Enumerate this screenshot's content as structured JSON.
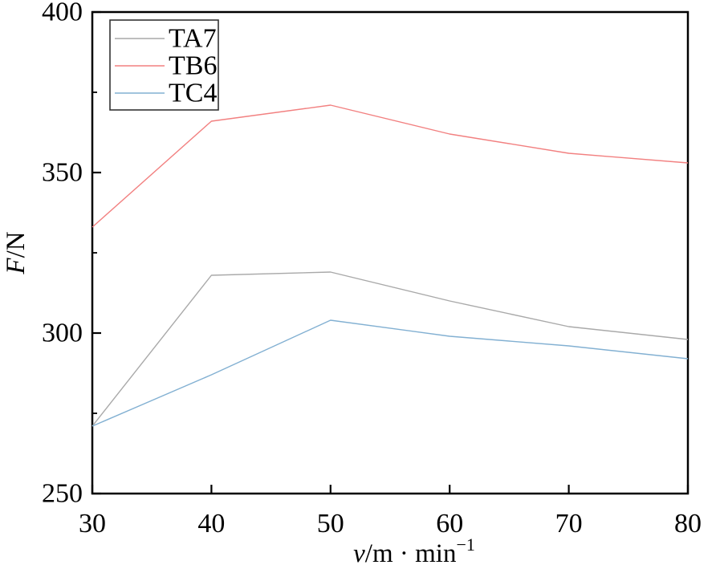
{
  "chart_data": {
    "type": "line",
    "title": "",
    "xlabel": "v/m·min⁻¹",
    "xlabel_parts": {
      "italic": "v",
      "rest": "/m · min",
      "sup": "−1"
    },
    "ylabel": "F/N",
    "ylabel_parts": {
      "italic": "F",
      "rest": "/N"
    },
    "x": [
      30,
      40,
      50,
      60,
      70,
      80
    ],
    "series": [
      {
        "name": "TA7",
        "color": "#A9A9A9",
        "values": [
          271,
          318,
          319,
          310,
          302,
          298
        ]
      },
      {
        "name": "TB6",
        "color": "#F28080",
        "values": [
          333,
          366,
          371,
          362,
          356,
          353
        ]
      },
      {
        "name": "TC4",
        "color": "#82B0D2",
        "values": [
          271,
          287,
          304,
          299,
          296,
          292
        ]
      }
    ],
    "xlim": [
      30,
      80
    ],
    "ylim": [
      250,
      400
    ],
    "xticks": [
      30,
      40,
      50,
      60,
      70,
      80
    ],
    "yticks": [
      250,
      300,
      350,
      400
    ],
    "yticks_minor": [
      275,
      325,
      375
    ],
    "grid": false,
    "legend_position": "top-left",
    "colors": {
      "axis": "#000000",
      "legend_border": "#333333",
      "background": "#ffffff"
    }
  }
}
